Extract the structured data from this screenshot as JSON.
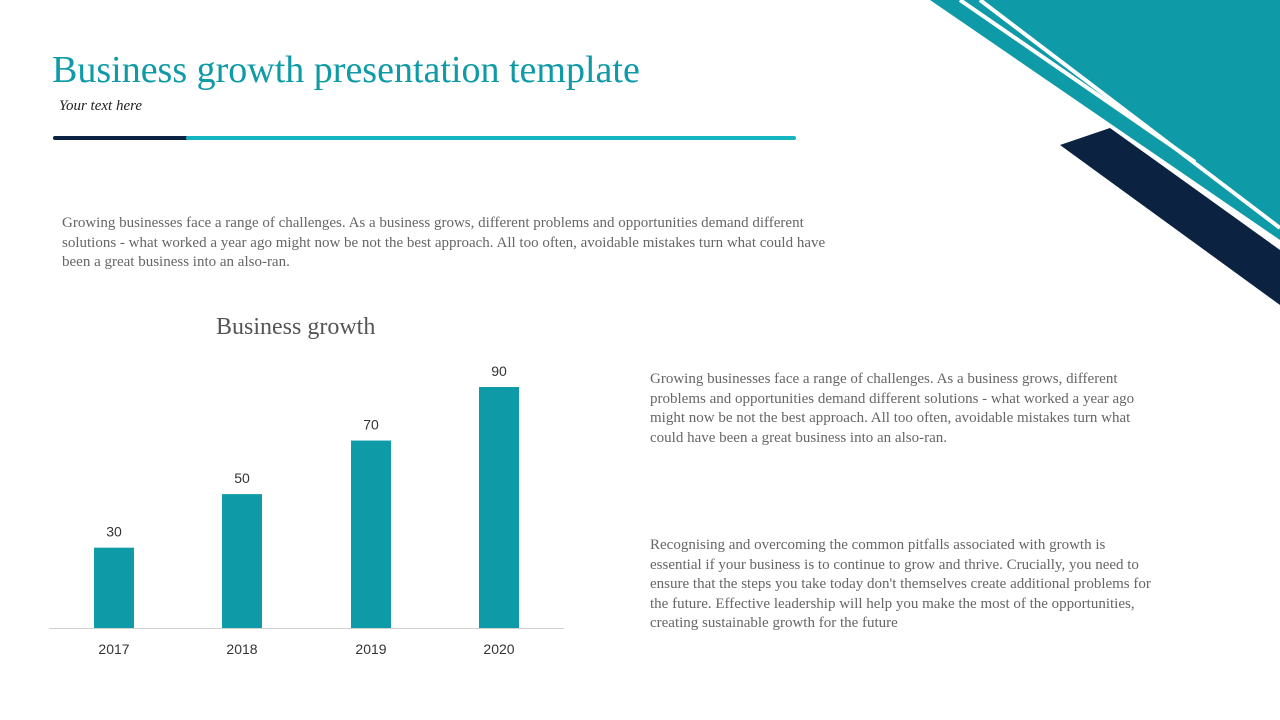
{
  "slide": {
    "title": "Business growth presentation template",
    "subtitle": "Your text here",
    "intro": "Growing businesses face a range of challenges. As a business grows, different problems and opportunities demand different solutions - what worked a year ago might now be not the best approach. All too often, avoidable mistakes turn what could have been a great business into an also-ran.",
    "paragraph1": "Growing businesses face a range of challenges. As a business grows, different problems and opportunities demand different solutions - what worked a year ago might now be not the best approach. All too often, avoidable mistakes turn what could have been a great business into an also-ran.",
    "paragraph2": "Recognising and overcoming the common pitfalls associated with growth is essential if your business is to continue to grow and thrive. Crucially, you need to ensure that the steps you take today don't themselves create additional problems for the future. Effective leadership will help you make the most of the opportunities, creating sustainable growth for the future"
  },
  "colors": {
    "accent": "#0e9aa7",
    "dark": "#0b2340",
    "bar": "#0e9aa7"
  },
  "chart_data": {
    "type": "bar",
    "title": "Business growth",
    "categories": [
      "2017",
      "2018",
      "2019",
      "2020"
    ],
    "values": [
      30,
      50,
      70,
      90
    ],
    "ylim": [
      0,
      90
    ],
    "grid": false,
    "legend": "none",
    "data_labels": true
  }
}
